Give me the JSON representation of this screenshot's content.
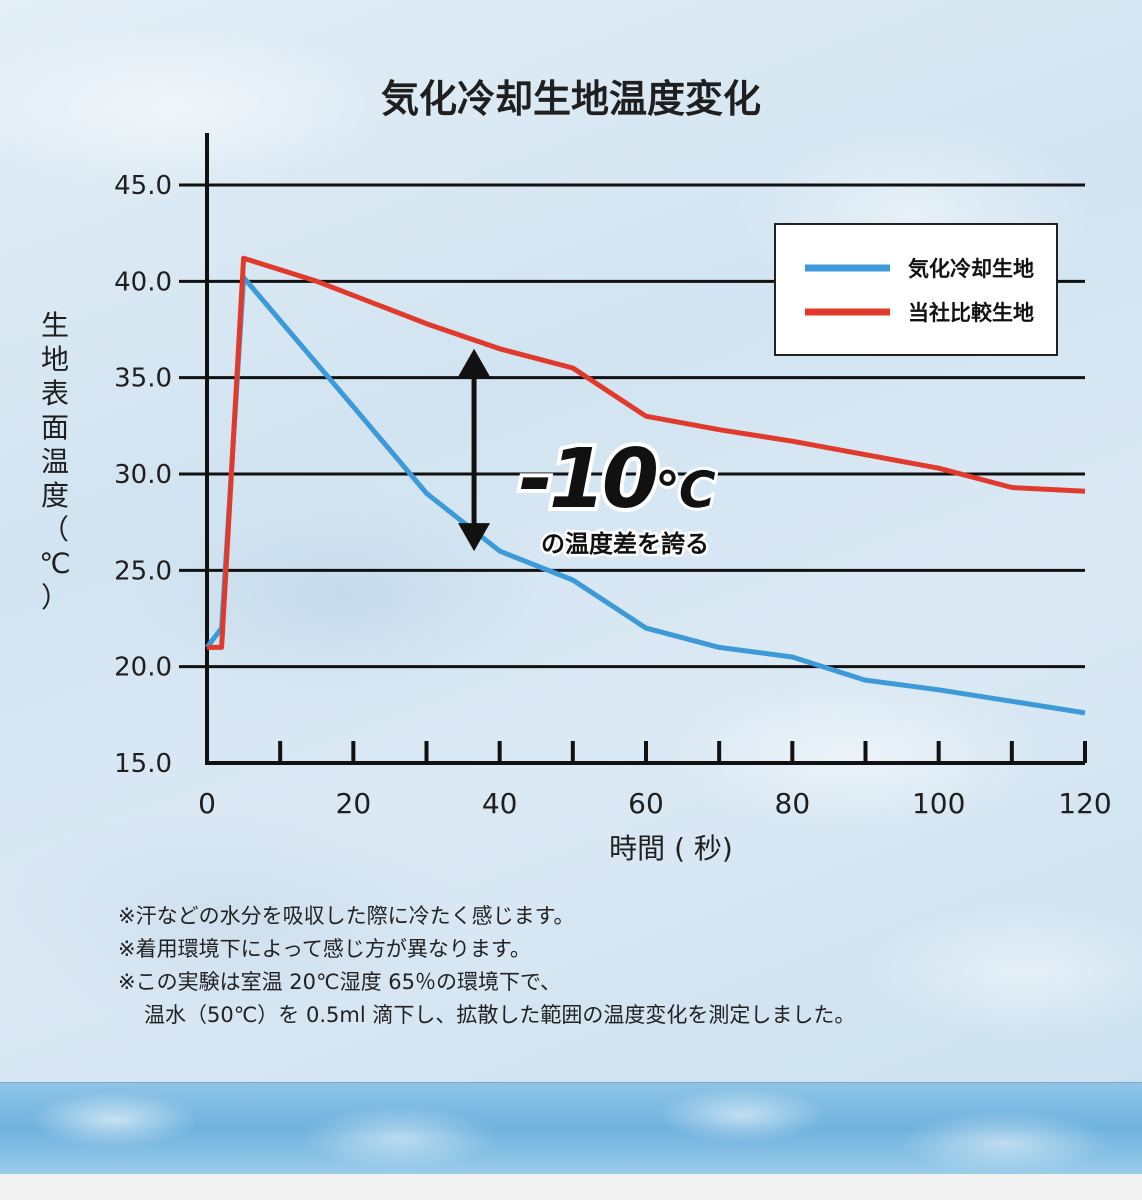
{
  "chart_data": {
    "type": "line",
    "title": "気化冷却生地温度変化",
    "xlabel": "時間 ( 秒)",
    "ylabel": "生地表面温度（℃）",
    "xlim": [
      0,
      120
    ],
    "ylim": [
      15,
      45
    ],
    "x_ticks": [
      "0",
      "20",
      "40",
      "60",
      "80",
      "100",
      "120"
    ],
    "y_ticks": [
      "45.0",
      "40.0",
      "35.0",
      "30.0",
      "25.0",
      "20.0",
      "15.0"
    ],
    "grid": true,
    "legend_position": "top-right",
    "series": [
      {
        "name": "気化冷却生地",
        "color": "#3d9ad8",
        "x": [
          0,
          2,
          5,
          20,
          30,
          40,
          50,
          60,
          70,
          80,
          90,
          100,
          110,
          120
        ],
        "y": [
          21.0,
          22.0,
          40.2,
          33.5,
          29.0,
          26.0,
          24.5,
          22.0,
          21.0,
          20.5,
          19.3,
          18.8,
          18.2,
          17.6
        ]
      },
      {
        "name": "当社比較生地",
        "color": "#e03a2c",
        "x": [
          0,
          2,
          5,
          15,
          30,
          40,
          50,
          60,
          70,
          80,
          90,
          100,
          110,
          120
        ],
        "y": [
          21.0,
          21.0,
          41.2,
          40.0,
          37.8,
          36.5,
          35.5,
          33.0,
          32.3,
          31.7,
          31.0,
          30.3,
          29.3,
          29.1
        ]
      }
    ],
    "annotation": {
      "value": "-10",
      "unit": "℃",
      "caption": "の温度差を誇る"
    }
  },
  "notes": [
    "※汗などの水分を吸収した際に冷たく感じます。",
    "※着用環境下によって感じ方が異なります。",
    "※この実験は室温 20℃湿度 65％の環境下で、",
    "温水（50℃）を 0.5ml 滴下し、拡散した範囲の温度変化を測定しました。"
  ]
}
